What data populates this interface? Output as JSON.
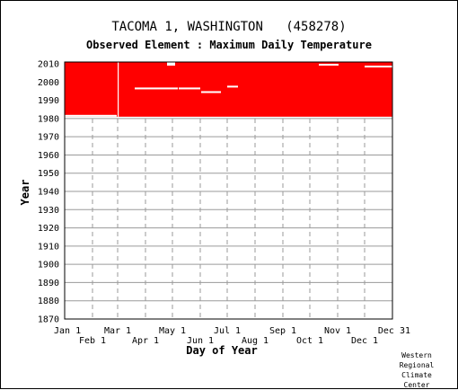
{
  "chart_data": {
    "type": "heatmap",
    "title": "TACOMA 1, WASHINGTON   (458278)",
    "subtitle": "Observed Element : Maximum Daily Temperature",
    "xlabel": "Day of Year",
    "ylabel": "Year",
    "x_ticks": [
      "Jan 1",
      "Feb 1",
      "Mar 1",
      "Apr 1",
      "May 1",
      "Jun 1",
      "Jul 1",
      "Aug 1",
      "Sep 1",
      "Oct 1",
      "Nov 1",
      "Dec 1",
      "Dec 31"
    ],
    "x_tick_days": [
      1,
      32,
      60,
      91,
      121,
      152,
      182,
      213,
      244,
      274,
      305,
      335,
      366
    ],
    "xlim": [
      1,
      366
    ],
    "y_ticks": [
      1870,
      1880,
      1890,
      1900,
      1910,
      1920,
      1930,
      1940,
      1950,
      1960,
      1970,
      1980,
      1990,
      2000,
      2010
    ],
    "ylim": [
      1870,
      2011
    ],
    "grid": true,
    "fill_color": "#ff0000",
    "background_color": "#ffffff",
    "data_coverage": {
      "description": "Red = days with observed data",
      "year_start": 1981,
      "year_end": 2011,
      "day_start": 1,
      "day_end": 366,
      "gaps": [
        {
          "year_start": 1981,
          "year_end": 2011,
          "day_start": 60,
          "day_end": 60
        },
        {
          "year_start": 1981,
          "year_end": 1982,
          "day_start": 1,
          "day_end": 59
        },
        {
          "year_start": 1996,
          "year_end": 1997,
          "day_start": 79,
          "day_end": 127
        },
        {
          "year_start": 1996,
          "year_end": 1997,
          "day_start": 128,
          "day_end": 152
        },
        {
          "year_start": 1994,
          "year_end": 1995,
          "day_start": 153,
          "day_end": 175
        },
        {
          "year_start": 1997,
          "year_end": 1998,
          "day_start": 182,
          "day_end": 194
        },
        {
          "year_start": 2009,
          "year_end": 2010,
          "day_start": 284,
          "day_end": 306
        },
        {
          "year_start": 2008,
          "year_end": 2009,
          "day_start": 335,
          "day_end": 366
        },
        {
          "year_start": 2009,
          "year_end": 2011,
          "day_start": 115,
          "day_end": 124
        }
      ]
    }
  },
  "credit": [
    "Western",
    "Regional",
    "Climate",
    "Center"
  ]
}
